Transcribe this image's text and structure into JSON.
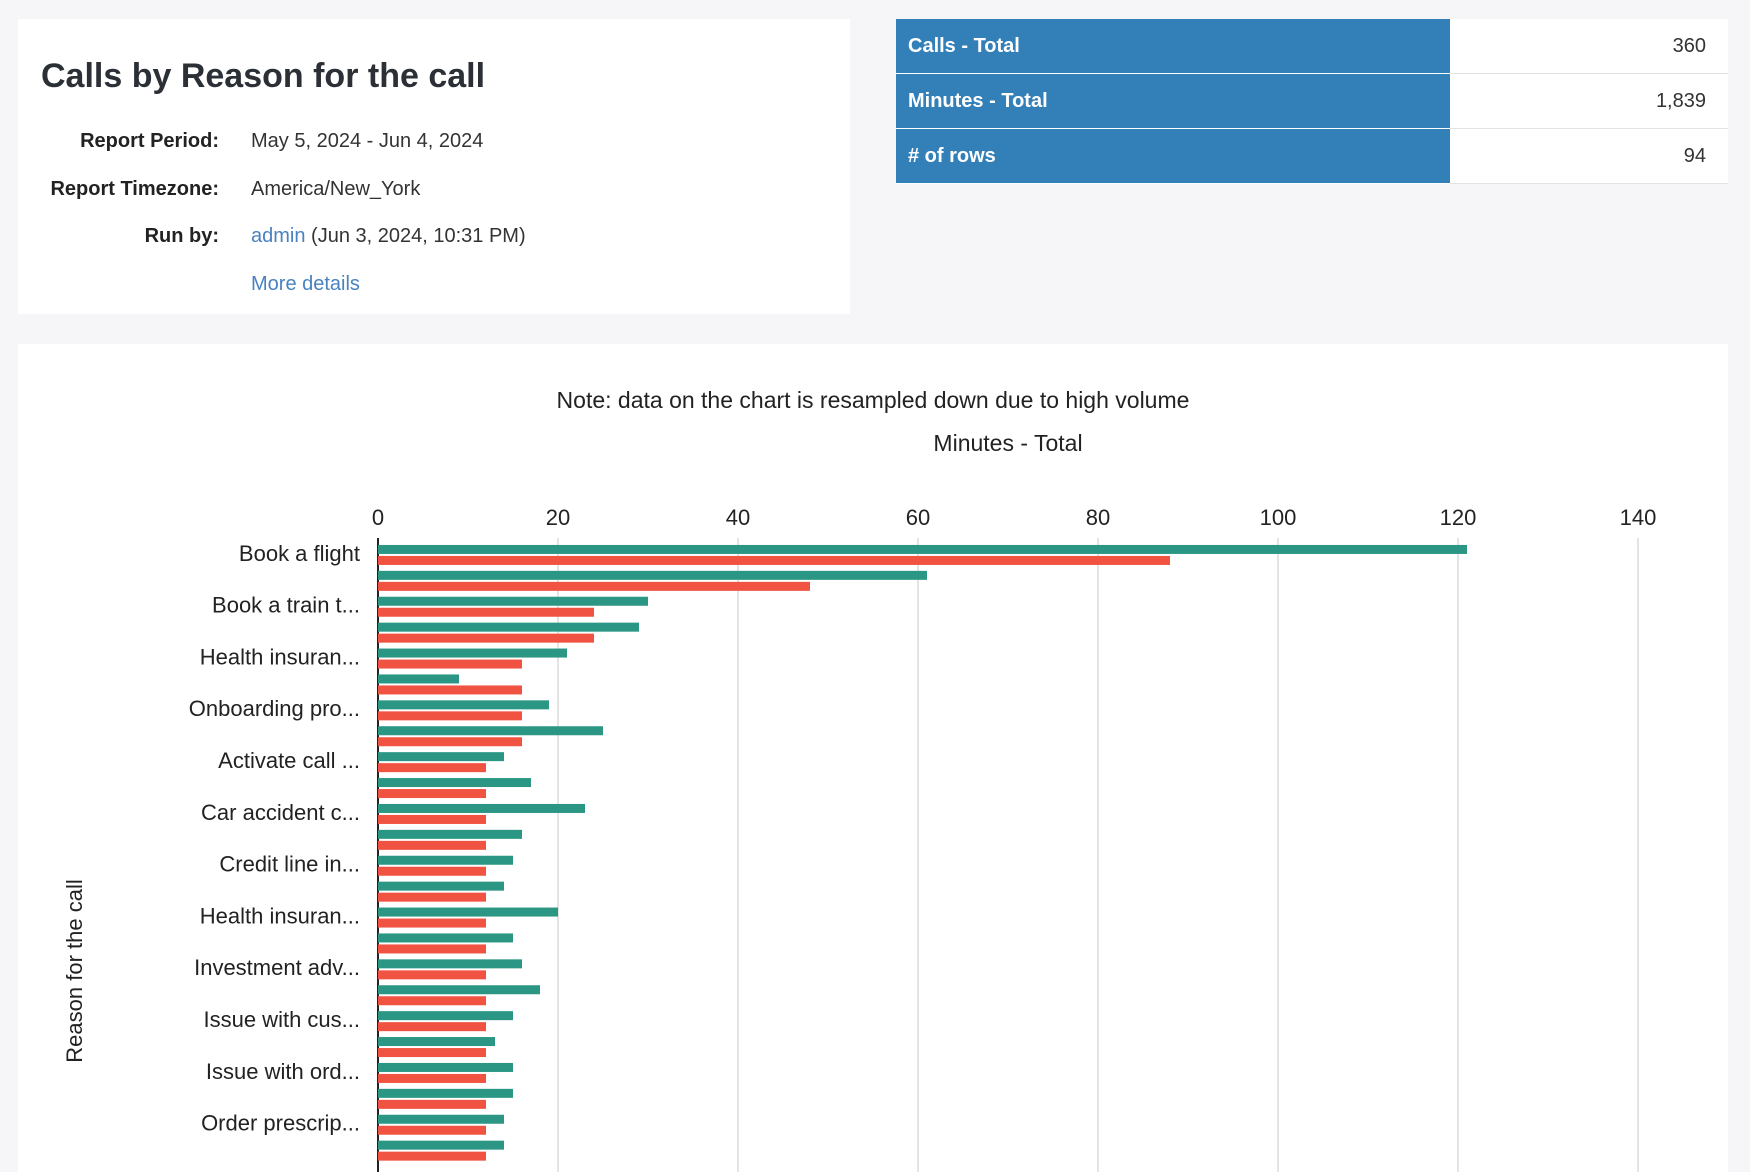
{
  "header": {
    "title": "Calls by Reason for the call",
    "fields": [
      {
        "label": "Report Period:",
        "value": "May 5, 2024 - Jun 4, 2024"
      },
      {
        "label": "Report Timezone:",
        "value": "America/New_York"
      },
      {
        "label": "Run by:",
        "link": "admin",
        "value": "(Jun 3, 2024, 10:31 PM)"
      }
    ],
    "more_details": "More details"
  },
  "summary": {
    "rows": [
      [
        "Calls - Total",
        "360"
      ],
      [
        "Minutes - Total",
        "1,839"
      ],
      [
        "# of rows",
        "94"
      ]
    ]
  },
  "chart_data": {
    "type": "bar",
    "orientation": "horizontal",
    "subtitle": "Note: data on the chart is resampled down due to high volume",
    "x_label": "Minutes - Total",
    "y_label": "Reason for the call",
    "categories": [
      "Book a flight",
      null,
      "Book a train t...",
      null,
      "Health insuran...",
      null,
      "Onboarding pro...",
      null,
      "Activate call ...",
      null,
      "Car accident c...",
      null,
      "Credit line in...",
      null,
      "Health insuran...",
      null,
      "Investment adv...",
      null,
      "Issue with cus...",
      null,
      "Issue with ord...",
      null,
      "Order prescrip...",
      null
    ],
    "series": [
      {
        "color": "#2a9683",
        "values": [
          121,
          61,
          30,
          29,
          21,
          9,
          19,
          25,
          14,
          17,
          23,
          16,
          15,
          14,
          20,
          15,
          16,
          18,
          15,
          13,
          15,
          15,
          14,
          14
        ]
      },
      {
        "color": "#f05341",
        "values": [
          88,
          48,
          24,
          24,
          16,
          16,
          16,
          16,
          12,
          12,
          12,
          12,
          12,
          12,
          12,
          12,
          12,
          12,
          12,
          12,
          12,
          12,
          12,
          12
        ]
      }
    ],
    "xlim": [
      0,
      140
    ],
    "xticks": [
      0,
      20,
      40,
      60,
      80,
      100,
      120,
      140
    ],
    "grid": true
  }
}
